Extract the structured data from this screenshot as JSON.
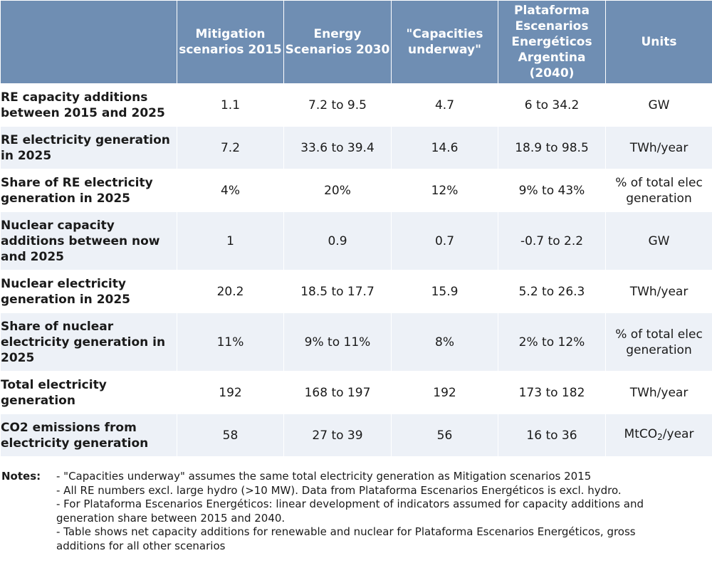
{
  "table": {
    "columns": [
      "",
      "Mitigation scenarios 2015",
      "Energy Scenarios 2030",
      "\"Capacities underway\"",
      "Plataforma Escenarios Energéticos Argentina (2040)",
      "Units"
    ],
    "rows": [
      {
        "label": "RE capacity additions between 2015 and 2025",
        "values": [
          "1.1",
          "7.2 to 9.5",
          "4.7",
          "6 to 34.2"
        ],
        "unit": "GW"
      },
      {
        "label": "RE electricity generation in 2025",
        "values": [
          "7.2",
          "33.6 to 39.4",
          "14.6",
          "18.9 to 98.5"
        ],
        "unit": "TWh/year"
      },
      {
        "label": "Share of RE electricity generation in 2025",
        "values": [
          "4%",
          "20%",
          "12%",
          "9% to 43%"
        ],
        "unit": "% of total elec generation"
      },
      {
        "label": "Nuclear capacity additions between now and 2025",
        "values": [
          "1",
          "0.9",
          "0.7",
          "-0.7 to 2.2"
        ],
        "unit": "GW"
      },
      {
        "label": "Nuclear electricity generation in 2025",
        "values": [
          "20.2",
          "18.5 to 17.7",
          "15.9",
          "5.2 to 26.3"
        ],
        "unit": "TWh/year"
      },
      {
        "label": "Share of nuclear electricity generation in 2025",
        "values": [
          "11%",
          "9% to 11%",
          "8%",
          "2% to 12%"
        ],
        "unit": "% of total elec generation"
      },
      {
        "label": "Total electricity generation",
        "values": [
          "192",
          "168 to 197",
          "192",
          "173 to 182"
        ],
        "unit": "TWh/year"
      },
      {
        "label": "CO2 emissions from electricity generation",
        "values": [
          "58",
          "27 to 39",
          "56",
          "16 to 36"
        ],
        "unit_main": "MtCO",
        "unit_sub": "2",
        "unit_tail": "/year"
      }
    ]
  },
  "notes": {
    "label": "Notes:",
    "lines": [
      "- \"Capacities underway\" assumes the same total electricity generation as Mitigation scenarios 2015",
      "-  All RE numbers excl. large hydro (>10 MW). Data from Plataforma Escenarios Energéticos is excl. hydro.",
      "- For Plataforma Escenarios Energéticos: linear development of indicators assumed for capacity additions and",
      "generation share between 2015 and 2040.",
      "- Table shows net capacity additions for renewable and nuclear for Plataforma Escenarios Energéticos, gross",
      "additions for all other scenarios"
    ]
  }
}
